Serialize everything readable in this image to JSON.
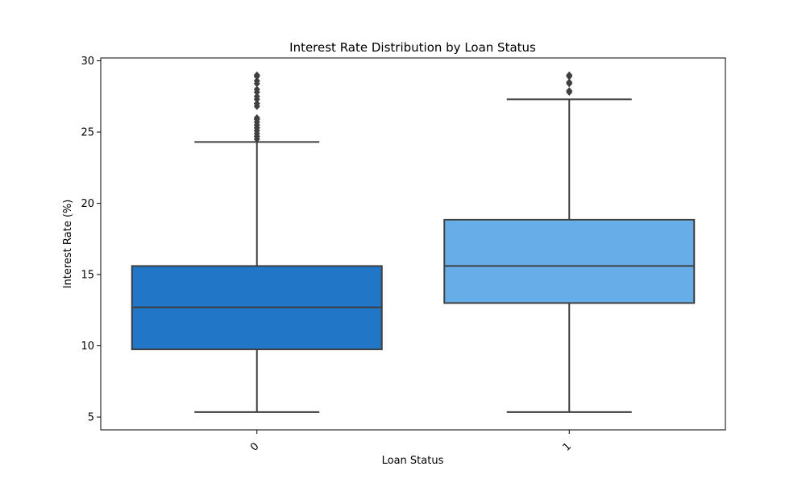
{
  "chart_data": {
    "type": "box",
    "title": "Interest Rate Distribution by Loan Status",
    "xlabel": "Loan Status",
    "ylabel": "Interest Rate (%)",
    "ylim": [
      4.1,
      30.2
    ],
    "yticks": [
      5,
      10,
      15,
      20,
      25,
      30
    ],
    "grid": false,
    "legend": "none",
    "categories": [
      "0",
      "1"
    ],
    "boxes": [
      {
        "category": "0",
        "color": "#2176C8",
        "whisker_low": 5.35,
        "q1": 9.75,
        "median": 12.7,
        "q3": 15.6,
        "whisker_high": 24.3,
        "outliers": [
          24.5,
          24.7,
          24.9,
          25.1,
          25.3,
          25.5,
          25.7,
          25.9,
          26.0,
          26.8,
          27.0,
          27.3,
          27.5,
          27.8,
          28.0,
          28.4,
          28.6,
          28.9,
          29.0
        ]
      },
      {
        "category": "1",
        "color": "#67AEE9",
        "whisker_low": 5.35,
        "q1": 13.0,
        "median": 15.6,
        "q3": 18.85,
        "whisker_high": 27.3,
        "outliers": [
          27.8,
          27.9,
          28.4,
          28.5,
          28.9,
          29.0
        ]
      }
    ],
    "line_color": "#3f3f3f",
    "outlier_color": "#3f3f3f"
  }
}
